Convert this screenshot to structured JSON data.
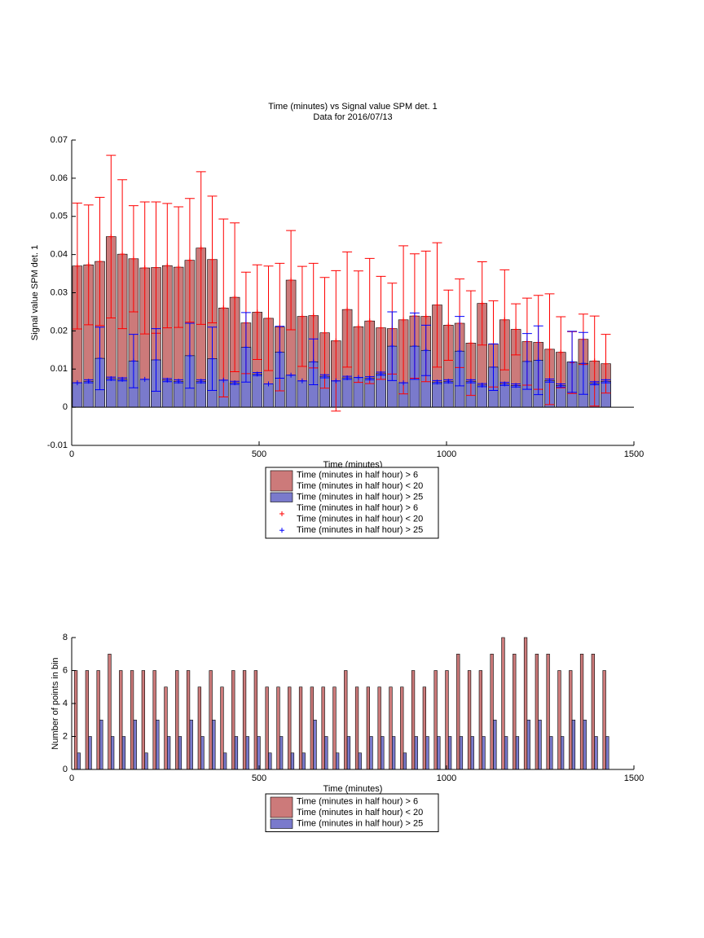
{
  "chart_data": [
    {
      "type": "bar",
      "title": "Time (minutes) vs Signal value SPM det. 1",
      "subtitle": "Data for 2016/07/13",
      "x_label": "Time (minutes)",
      "y_label": "Signal value SPM det. 1",
      "xlim": [
        0,
        1500
      ],
      "xticks": [
        0,
        500,
        1000,
        1500
      ],
      "ylim": [
        -0.01,
        0.07
      ],
      "yticks": [
        -0.01,
        0,
        0.01,
        0.02,
        0.03,
        0.04,
        0.05,
        0.06,
        0.07
      ],
      "barmode": "overlay",
      "bar_width": 26,
      "marker": "+",
      "x": [
        15,
        45,
        75,
        105,
        135,
        165,
        195,
        225,
        255,
        285,
        315,
        345,
        375,
        405,
        435,
        465,
        495,
        525,
        555,
        585,
        615,
        645,
        675,
        705,
        735,
        765,
        795,
        825,
        855,
        885,
        915,
        945,
        975,
        1005,
        1035,
        1065,
        1095,
        1125,
        1155,
        1185,
        1215,
        1245,
        1275,
        1305,
        1335,
        1365,
        1395,
        1425
      ],
      "series": [
        {
          "name": [
            "Time (minutes in half hour) > 6",
            "Time (minutes in half hour) < 20"
          ],
          "color": "#cc7a7a",
          "error_color": "#ff0000",
          "values": [
            0.037,
            0.0373,
            0.0382,
            0.0447,
            0.0401,
            0.0389,
            0.0365,
            0.0366,
            0.0371,
            0.0367,
            0.0385,
            0.0417,
            0.0387,
            0.026,
            0.0288,
            0.0221,
            0.0249,
            0.0233,
            0.021,
            0.0333,
            0.0238,
            0.024,
            0.0195,
            0.0174,
            0.0256,
            0.0211,
            0.0226,
            0.0208,
            0.0206,
            0.0229,
            0.0239,
            0.0238,
            0.0268,
            0.0215,
            0.022,
            0.0168,
            0.0272,
            0.0166,
            0.0229,
            0.0204,
            0.0172,
            0.017,
            0.0152,
            0.0144,
            0.0117,
            0.0178,
            0.0121,
            0.0114
          ],
          "errors": [
            0.0165,
            0.0157,
            0.0168,
            0.0213,
            0.0195,
            0.0139,
            0.0173,
            0.0172,
            0.0163,
            0.0158,
            0.0162,
            0.02,
            0.0166,
            0.0233,
            0.0195,
            0.0133,
            0.0124,
            0.0137,
            0.0167,
            0.013,
            0.0131,
            0.0137,
            0.0145,
            0.0184,
            0.0151,
            0.0146,
            0.0164,
            0.0135,
            0.0119,
            0.0194,
            0.0163,
            0.0171,
            0.0163,
            0.0092,
            0.0116,
            0.0137,
            0.0109,
            0.0113,
            0.0131,
            0.0067,
            0.0114,
            0.0123,
            0.0145,
            0.0093,
            0.0081,
            0.0066,
            0.0118,
            0.0077
          ]
        },
        {
          "name": [
            "Time (minutes in half hour) > 25"
          ],
          "color": "#7a7acc",
          "error_color": "#0000ff",
          "values": [
            0.0064,
            0.0068,
            0.0128,
            0.0075,
            0.0073,
            0.0121,
            0.0073,
            0.0124,
            0.0071,
            0.0068,
            0.0135,
            0.0068,
            0.0127,
            0.0071,
            0.0064,
            0.0157,
            0.0087,
            0.0061,
            0.0144,
            0.0084,
            0.0069,
            0.0119,
            0.0081,
            0.0069,
            0.0077,
            0.0078,
            0.0076,
            0.0088,
            0.016,
            0.0064,
            0.016,
            0.0149,
            0.0066,
            0.0068,
            0.0147,
            0.0068,
            0.0058,
            0.0105,
            0.0061,
            0.0057,
            0.012,
            0.0123,
            0.007,
            0.0057,
            0.0119,
            0.0115,
            0.0063,
            0.0068
          ],
          "errors": [
            0,
            0.0004,
            0.0082,
            0.0004,
            0.0004,
            0.007,
            0,
            0.0082,
            0.0004,
            0.0004,
            0.0085,
            0.0004,
            0.0083,
            0,
            0.0004,
            0.0091,
            0.0004,
            0,
            0.0068,
            0,
            0,
            0.006,
            0.0004,
            0,
            0.0004,
            0,
            0.0004,
            0.0004,
            0.009,
            0,
            0.0087,
            0.0066,
            0.0004,
            0.0004,
            0.0091,
            0.0004,
            0.0004,
            0.0061,
            0.0004,
            0.0004,
            0.0073,
            0.009,
            0.0004,
            0.0004,
            0.008,
            0.0081,
            0.0004,
            0.0004
          ]
        }
      ]
    },
    {
      "type": "bar",
      "x_label": "Time (minutes)",
      "y_label": "Number of points in bin",
      "xlim": [
        0,
        1500
      ],
      "xticks": [
        0,
        500,
        1000,
        1500
      ],
      "ylim": [
        0,
        8
      ],
      "yticks": [
        0,
        2,
        4,
        6,
        8
      ],
      "barmode": "group",
      "bar_width": 16,
      "x": [
        15,
        45,
        75,
        105,
        135,
        165,
        195,
        225,
        255,
        285,
        315,
        345,
        375,
        405,
        435,
        465,
        495,
        525,
        555,
        585,
        615,
        645,
        675,
        705,
        735,
        765,
        795,
        825,
        855,
        885,
        915,
        945,
        975,
        1005,
        1035,
        1065,
        1095,
        1125,
        1155,
        1185,
        1215,
        1245,
        1275,
        1305,
        1335,
        1365,
        1395,
        1425
      ],
      "series": [
        {
          "name": [
            "Time (minutes in half hour) > 6",
            "Time (minutes in half hour) < 20"
          ],
          "color": "#cc7a7a",
          "values": [
            6,
            6,
            6,
            7,
            6,
            6,
            6,
            6,
            5,
            6,
            6,
            5,
            6,
            5,
            6,
            6,
            6,
            5,
            5,
            5,
            5,
            5,
            5,
            5,
            6,
            5,
            5,
            5,
            5,
            5,
            6,
            5,
            6,
            6,
            7,
            6,
            6,
            7,
            8,
            7,
            8,
            7,
            7,
            6,
            6,
            7,
            7,
            6
          ]
        },
        {
          "name": [
            "Time (minutes in half hour) > 25"
          ],
          "color": "#7a7acc",
          "values": [
            1,
            2,
            3,
            2,
            2,
            3,
            1,
            3,
            2,
            2,
            3,
            2,
            3,
            1,
            2,
            2,
            2,
            1,
            2,
            1,
            1,
            3,
            2,
            1,
            2,
            1,
            2,
            2,
            2,
            1,
            2,
            2,
            2,
            2,
            2,
            2,
            2,
            3,
            2,
            2,
            3,
            3,
            2,
            2,
            3,
            3,
            2,
            2
          ]
        }
      ]
    }
  ]
}
